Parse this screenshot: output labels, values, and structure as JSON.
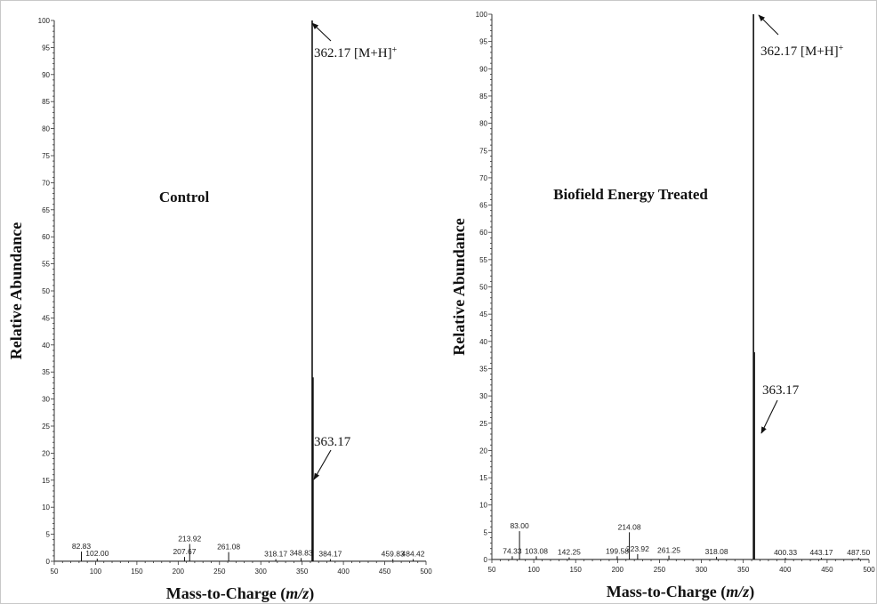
{
  "chart_data": [
    {
      "type": "bar",
      "title": "Control",
      "xlabel": "Mass-to-Charge (m/z)",
      "ylabel": "Relative Abundance",
      "xlim": [
        50,
        500
      ],
      "ylim": [
        0,
        100
      ],
      "xticks": [
        "50",
        "100",
        "150",
        "200",
        "250",
        "300",
        "350",
        "400",
        "450",
        "500"
      ],
      "yticks": [
        "0",
        "5",
        "10",
        "15",
        "20",
        "25",
        "30",
        "35",
        "40",
        "45",
        "50",
        "55",
        "60",
        "65",
        "70",
        "75",
        "80",
        "85",
        "90",
        "95",
        "100"
      ],
      "peaks": [
        {
          "mz": 82.83,
          "abundance": 1.8,
          "label": "82.83"
        },
        {
          "mz": 102.0,
          "abundance": 0.5,
          "label": "102.00"
        },
        {
          "mz": 207.67,
          "abundance": 0.8,
          "label": "207.67"
        },
        {
          "mz": 213.92,
          "abundance": 3.2,
          "label": "213.92"
        },
        {
          "mz": 261.08,
          "abundance": 1.7,
          "label": "261.08"
        },
        {
          "mz": 318.17,
          "abundance": 0.4,
          "label": "318.17"
        },
        {
          "mz": 348.83,
          "abundance": 0.6,
          "label": "348.83"
        },
        {
          "mz": 362.17,
          "abundance": 100,
          "label": ""
        },
        {
          "mz": 363.17,
          "abundance": 34,
          "label": ""
        },
        {
          "mz": 384.17,
          "abundance": 0.4,
          "label": "384.17"
        },
        {
          "mz": 459.83,
          "abundance": 0.4,
          "label": "459.83"
        },
        {
          "mz": 484.42,
          "abundance": 0.4,
          "label": "484.42"
        }
      ],
      "annotations": [
        {
          "text": "362.17 [M+H]",
          "sup": "+",
          "mz": 362.17,
          "y": 100
        },
        {
          "text": "363.17",
          "sup": "",
          "mz": 363.17,
          "y": 15
        }
      ]
    },
    {
      "type": "bar",
      "title": "Biofield Energy Treated",
      "xlabel": "Mass-to-Charge (m/z)",
      "ylabel": "Relative Abundance",
      "xlim": [
        50,
        500
      ],
      "ylim": [
        0,
        100
      ],
      "xticks": [
        "50",
        "100",
        "150",
        "200",
        "250",
        "300",
        "350",
        "400",
        "450",
        "500"
      ],
      "yticks": [
        "0",
        "5",
        "10",
        "15",
        "20",
        "25",
        "30",
        "35",
        "40",
        "45",
        "50",
        "55",
        "60",
        "65",
        "70",
        "75",
        "80",
        "85",
        "90",
        "95",
        "100"
      ],
      "peaks": [
        {
          "mz": 74.33,
          "abundance": 0.6,
          "label": "74.33"
        },
        {
          "mz": 83.0,
          "abundance": 5.2,
          "label": "83.00"
        },
        {
          "mz": 103.08,
          "abundance": 0.6,
          "label": "103.08"
        },
        {
          "mz": 142.25,
          "abundance": 0.4,
          "label": "142.25"
        },
        {
          "mz": 199.58,
          "abundance": 0.6,
          "label": "199.58"
        },
        {
          "mz": 214.08,
          "abundance": 5.0,
          "label": "214.08"
        },
        {
          "mz": 223.92,
          "abundance": 1.0,
          "label": "223.92"
        },
        {
          "mz": 261.25,
          "abundance": 0.7,
          "label": "261.25"
        },
        {
          "mz": 318.08,
          "abundance": 0.5,
          "label": "318.08"
        },
        {
          "mz": 362.17,
          "abundance": 100,
          "label": ""
        },
        {
          "mz": 363.17,
          "abundance": 38,
          "label": ""
        },
        {
          "mz": 400.33,
          "abundance": 0.3,
          "label": "400.33"
        },
        {
          "mz": 443.17,
          "abundance": 0.3,
          "label": "443.17"
        },
        {
          "mz": 487.5,
          "abundance": 0.3,
          "label": "487.50"
        }
      ],
      "annotations": [
        {
          "text": "362.17 [M+H]",
          "sup": "+",
          "mz": 362.17,
          "y": 100
        },
        {
          "text": "363.17",
          "sup": "",
          "mz": 363.17,
          "y": 24
        }
      ]
    }
  ]
}
